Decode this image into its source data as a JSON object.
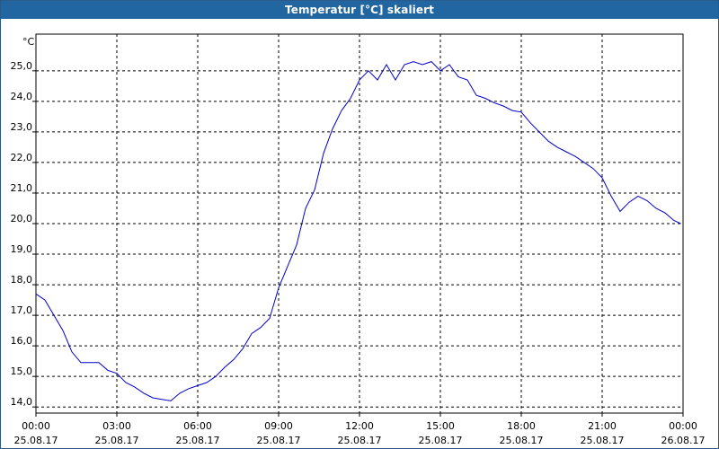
{
  "window": {
    "title": "Temperatur [°C] skaliert"
  },
  "chart_data": {
    "type": "line",
    "title": "Temperatur [°C] skaliert",
    "unit_label": "°C",
    "grid": true,
    "xlim": [
      "2017-08-25T00:00",
      "2017-08-26T00:00"
    ],
    "ylim": [
      13.8,
      26.2
    ],
    "y_ticks": [
      "14,0",
      "15,0",
      "16,0",
      "17,0",
      "18,0",
      "19,0",
      "20,0",
      "21,0",
      "22,0",
      "23,0",
      "24,0",
      "25,0"
    ],
    "y_tick_values": [
      14,
      15,
      16,
      17,
      18,
      19,
      20,
      21,
      22,
      23,
      24,
      25
    ],
    "x_ticks": [
      {
        "time": "00:00",
        "date": "25.08.17"
      },
      {
        "time": "03:00",
        "date": "25.08.17"
      },
      {
        "time": "06:00",
        "date": "25.08.17"
      },
      {
        "time": "09:00",
        "date": "25.08.17"
      },
      {
        "time": "12:00",
        "date": "25.08.17"
      },
      {
        "time": "15:00",
        "date": "25.08.17"
      },
      {
        "time": "18:00",
        "date": "25.08.17"
      },
      {
        "time": "21:00",
        "date": "25.08.17"
      },
      {
        "time": "00:00",
        "date": "26.08.17"
      }
    ],
    "line_color": "#0000cc",
    "series": [
      {
        "x": [
          "00:00",
          "00:20",
          "00:40",
          "01:00",
          "01:20",
          "01:40",
          "02:00",
          "02:20",
          "02:40",
          "03:00",
          "03:20",
          "03:40",
          "04:00",
          "04:20",
          "04:40",
          "05:00",
          "05:20",
          "05:40",
          "06:00",
          "06:20",
          "06:40",
          "07:00",
          "07:20",
          "07:40",
          "08:00",
          "08:20",
          "08:40",
          "09:00",
          "09:20",
          "09:40",
          "10:00",
          "10:20",
          "10:40",
          "11:00",
          "11:20",
          "11:40",
          "12:00",
          "12:20",
          "12:40",
          "13:00",
          "13:20",
          "13:40",
          "14:00",
          "14:20",
          "14:40",
          "15:00",
          "15:20",
          "15:40",
          "16:00",
          "16:20",
          "16:40",
          "17:00",
          "17:20",
          "17:40",
          "18:00",
          "18:20",
          "18:40",
          "19:00",
          "19:20",
          "19:40",
          "20:00",
          "20:20",
          "20:40",
          "21:00",
          "21:20",
          "21:40",
          "22:00",
          "22:20",
          "22:40",
          "23:00",
          "23:20",
          "23:40",
          "23:55"
        ],
        "y": [
          17.7,
          17.5,
          17.0,
          16.5,
          15.8,
          15.45,
          15.45,
          15.45,
          15.2,
          15.1,
          14.8,
          14.65,
          14.45,
          14.3,
          14.25,
          14.2,
          14.45,
          14.6,
          14.7,
          14.8,
          15.0,
          15.3,
          15.55,
          15.9,
          16.4,
          16.6,
          16.9,
          17.9,
          18.6,
          19.3,
          20.5,
          21.1,
          22.3,
          23.1,
          23.7,
          24.1,
          24.7,
          25.0,
          24.7,
          25.2,
          24.7,
          25.2,
          25.3,
          25.2,
          25.3,
          25.0,
          25.2,
          24.8,
          24.7,
          24.2,
          24.1,
          23.95,
          23.85,
          23.7,
          23.65,
          23.3,
          23.0,
          22.7,
          22.5,
          22.35,
          22.2,
          22.0,
          21.8,
          21.5,
          20.9,
          20.4,
          20.7,
          20.9,
          20.75,
          20.5,
          20.35,
          20.1,
          20.0
        ]
      }
    ]
  }
}
